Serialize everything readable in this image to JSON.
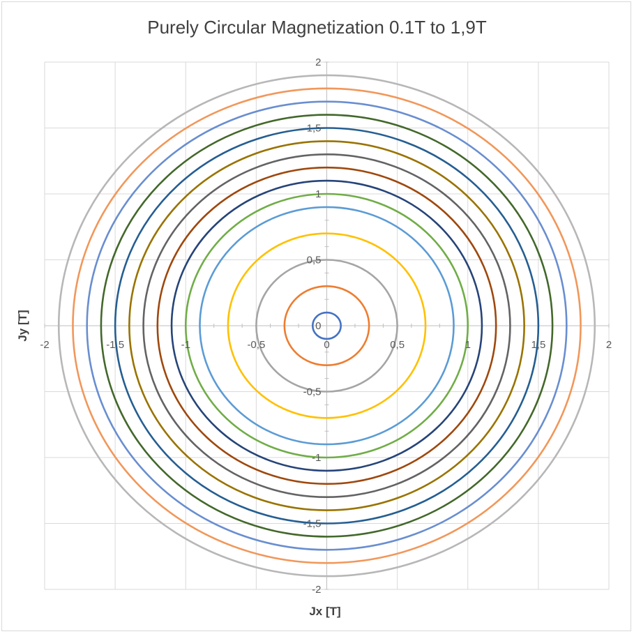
{
  "chart_data": {
    "type": "scatter",
    "title": "Purely Circular Magnetization 0.1T to 1,9T",
    "xlabel": "Jx [T]",
    "ylabel": "Jy [T]",
    "xlim": [
      -2,
      2
    ],
    "ylim": [
      -2,
      2
    ],
    "x_ticks": [
      "-2",
      "-1,5",
      "-1",
      "-0,5",
      "0",
      "0,5",
      "1",
      "1,5",
      "2"
    ],
    "y_ticks": [
      "-2",
      "-1,5",
      "-1",
      "-0,5",
      "0",
      "0,5",
      "1",
      "1,5",
      "2"
    ],
    "grid": true,
    "legend": "none",
    "series": [
      {
        "radius": 0.1,
        "color": "#4472c4"
      },
      {
        "radius": 0.3,
        "color": "#ed7d31"
      },
      {
        "radius": 0.5,
        "color": "#a5a5a5"
      },
      {
        "radius": 0.7,
        "color": "#ffc000"
      },
      {
        "radius": 0.9,
        "color": "#5b9bd5"
      },
      {
        "radius": 1.0,
        "color": "#70ad47"
      },
      {
        "radius": 1.1,
        "color": "#264478"
      },
      {
        "radius": 1.2,
        "color": "#9e480e"
      },
      {
        "radius": 1.3,
        "color": "#636363"
      },
      {
        "radius": 1.4,
        "color": "#997300"
      },
      {
        "radius": 1.5,
        "color": "#255e91"
      },
      {
        "radius": 1.6,
        "color": "#43682b"
      },
      {
        "radius": 1.7,
        "color": "#698ed0"
      },
      {
        "radius": 1.8,
        "color": "#f1975a"
      },
      {
        "radius": 1.9,
        "color": "#b7b7b7"
      }
    ]
  }
}
